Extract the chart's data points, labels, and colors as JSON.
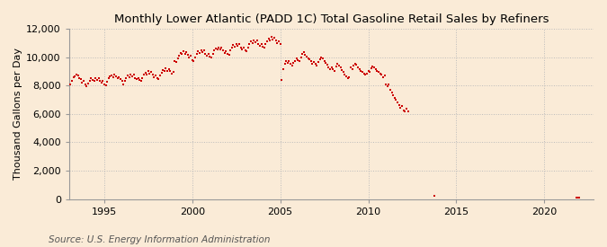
{
  "title": "Monthly Lower Atlantic (PADD 1C) Total Gasoline Retail Sales by Refiners",
  "ylabel": "Thousand Gallons per Day",
  "source": "Source: U.S. Energy Information Administration",
  "background_color": "#faebd7",
  "plot_bg_color": "#faebd7",
  "dot_color": "#cc0000",
  "grid_color": "#bbbbbb",
  "spine_color": "#999999",
  "ylim": [
    0,
    12000
  ],
  "yticks": [
    0,
    2000,
    4000,
    6000,
    8000,
    10000,
    12000
  ],
  "xlim": [
    1993.0,
    2022.8
  ],
  "xticks": [
    1995,
    2000,
    2005,
    2010,
    2015,
    2020
  ],
  "title_fontsize": 9.5,
  "tick_fontsize": 8,
  "ylabel_fontsize": 8,
  "source_fontsize": 7.5,
  "data": [
    [
      1993.08,
      8050
    ],
    [
      1993.17,
      8350
    ],
    [
      1993.25,
      8600
    ],
    [
      1993.33,
      8650
    ],
    [
      1993.42,
      8750
    ],
    [
      1993.5,
      8700
    ],
    [
      1993.58,
      8550
    ],
    [
      1993.67,
      8450
    ],
    [
      1993.75,
      8200
    ],
    [
      1993.83,
      8300
    ],
    [
      1993.92,
      8100
    ],
    [
      1994.0,
      7950
    ],
    [
      1994.08,
      8150
    ],
    [
      1994.17,
      8350
    ],
    [
      1994.25,
      8500
    ],
    [
      1994.33,
      8400
    ],
    [
      1994.42,
      8300
    ],
    [
      1994.5,
      8550
    ],
    [
      1994.58,
      8400
    ],
    [
      1994.67,
      8500
    ],
    [
      1994.75,
      8350
    ],
    [
      1994.83,
      8200
    ],
    [
      1994.92,
      8300
    ],
    [
      1995.0,
      8100
    ],
    [
      1995.08,
      8000
    ],
    [
      1995.17,
      8250
    ],
    [
      1995.25,
      8500
    ],
    [
      1995.33,
      8650
    ],
    [
      1995.42,
      8700
    ],
    [
      1995.5,
      8600
    ],
    [
      1995.58,
      8750
    ],
    [
      1995.67,
      8650
    ],
    [
      1995.75,
      8500
    ],
    [
      1995.83,
      8600
    ],
    [
      1995.92,
      8450
    ],
    [
      1996.0,
      8300
    ],
    [
      1996.08,
      8100
    ],
    [
      1996.17,
      8350
    ],
    [
      1996.25,
      8550
    ],
    [
      1996.33,
      8700
    ],
    [
      1996.42,
      8600
    ],
    [
      1996.5,
      8800
    ],
    [
      1996.58,
      8650
    ],
    [
      1996.67,
      8750
    ],
    [
      1996.75,
      8550
    ],
    [
      1996.83,
      8450
    ],
    [
      1996.92,
      8550
    ],
    [
      1997.0,
      8400
    ],
    [
      1997.08,
      8300
    ],
    [
      1997.17,
      8550
    ],
    [
      1997.25,
      8750
    ],
    [
      1997.33,
      8900
    ],
    [
      1997.42,
      8800
    ],
    [
      1997.5,
      9000
    ],
    [
      1997.58,
      8850
    ],
    [
      1997.67,
      8950
    ],
    [
      1997.75,
      8800
    ],
    [
      1997.83,
      8600
    ],
    [
      1997.92,
      8700
    ],
    [
      1998.0,
      8550
    ],
    [
      1998.08,
      8450
    ],
    [
      1998.17,
      8700
    ],
    [
      1998.25,
      8900
    ],
    [
      1998.33,
      9100
    ],
    [
      1998.42,
      9000
    ],
    [
      1998.5,
      9200
    ],
    [
      1998.58,
      9050
    ],
    [
      1998.67,
      9150
    ],
    [
      1998.75,
      9000
    ],
    [
      1998.83,
      8850
    ],
    [
      1998.92,
      8950
    ],
    [
      1999.0,
      9750
    ],
    [
      1999.08,
      9650
    ],
    [
      1999.17,
      9900
    ],
    [
      1999.25,
      10100
    ],
    [
      1999.33,
      10300
    ],
    [
      1999.42,
      10200
    ],
    [
      1999.5,
      10400
    ],
    [
      1999.58,
      10250
    ],
    [
      1999.67,
      10350
    ],
    [
      1999.75,
      10150
    ],
    [
      1999.83,
      10000
    ],
    [
      1999.92,
      10100
    ],
    [
      2000.0,
      9800
    ],
    [
      2000.08,
      9700
    ],
    [
      2000.17,
      10000
    ],
    [
      2000.25,
      10200
    ],
    [
      2000.33,
      10400
    ],
    [
      2000.42,
      10300
    ],
    [
      2000.5,
      10500
    ],
    [
      2000.58,
      10350
    ],
    [
      2000.67,
      10450
    ],
    [
      2000.75,
      10250
    ],
    [
      2000.83,
      10100
    ],
    [
      2000.92,
      10200
    ],
    [
      2001.0,
      10050
    ],
    [
      2001.08,
      9950
    ],
    [
      2001.17,
      10250
    ],
    [
      2001.25,
      10450
    ],
    [
      2001.33,
      10600
    ],
    [
      2001.42,
      10550
    ],
    [
      2001.5,
      10700
    ],
    [
      2001.58,
      10550
    ],
    [
      2001.67,
      10650
    ],
    [
      2001.75,
      10450
    ],
    [
      2001.83,
      10300
    ],
    [
      2001.92,
      10400
    ],
    [
      2002.0,
      10250
    ],
    [
      2002.08,
      10150
    ],
    [
      2002.17,
      10450
    ],
    [
      2002.25,
      10650
    ],
    [
      2002.33,
      10850
    ],
    [
      2002.42,
      10750
    ],
    [
      2002.5,
      10950
    ],
    [
      2002.58,
      10800
    ],
    [
      2002.67,
      10900
    ],
    [
      2002.75,
      10700
    ],
    [
      2002.83,
      10550
    ],
    [
      2002.92,
      10650
    ],
    [
      2003.0,
      10500
    ],
    [
      2003.08,
      10400
    ],
    [
      2003.17,
      10700
    ],
    [
      2003.25,
      10900
    ],
    [
      2003.33,
      11100
    ],
    [
      2003.42,
      11000
    ],
    [
      2003.5,
      11200
    ],
    [
      2003.58,
      11050
    ],
    [
      2003.67,
      11150
    ],
    [
      2003.75,
      10950
    ],
    [
      2003.83,
      10800
    ],
    [
      2003.92,
      10900
    ],
    [
      2004.0,
      10750
    ],
    [
      2004.08,
      10650
    ],
    [
      2004.17,
      10950
    ],
    [
      2004.25,
      11100
    ],
    [
      2004.33,
      11300
    ],
    [
      2004.42,
      11200
    ],
    [
      2004.5,
      11400
    ],
    [
      2004.58,
      11250
    ],
    [
      2004.67,
      11350
    ],
    [
      2004.75,
      11150
    ],
    [
      2004.83,
      11000
    ],
    [
      2004.92,
      11100
    ],
    [
      2005.0,
      10900
    ],
    [
      2005.08,
      8400
    ],
    [
      2005.17,
      9150
    ],
    [
      2005.25,
      9500
    ],
    [
      2005.33,
      9700
    ],
    [
      2005.42,
      9600
    ],
    [
      2005.5,
      9750
    ],
    [
      2005.58,
      9500
    ],
    [
      2005.67,
      9400
    ],
    [
      2005.75,
      9600
    ],
    [
      2005.83,
      9750
    ],
    [
      2005.92,
      9900
    ],
    [
      2006.0,
      9800
    ],
    [
      2006.08,
      9700
    ],
    [
      2006.17,
      10000
    ],
    [
      2006.25,
      10200
    ],
    [
      2006.33,
      10350
    ],
    [
      2006.42,
      10150
    ],
    [
      2006.5,
      10050
    ],
    [
      2006.58,
      9900
    ],
    [
      2006.67,
      9850
    ],
    [
      2006.75,
      9700
    ],
    [
      2006.83,
      9550
    ],
    [
      2006.92,
      9650
    ],
    [
      2007.0,
      9500
    ],
    [
      2007.08,
      9400
    ],
    [
      2007.17,
      9650
    ],
    [
      2007.25,
      9850
    ],
    [
      2007.33,
      10000
    ],
    [
      2007.42,
      9900
    ],
    [
      2007.5,
      9750
    ],
    [
      2007.58,
      9600
    ],
    [
      2007.67,
      9450
    ],
    [
      2007.75,
      9300
    ],
    [
      2007.83,
      9150
    ],
    [
      2007.92,
      9300
    ],
    [
      2008.0,
      9150
    ],
    [
      2008.08,
      9050
    ],
    [
      2008.17,
      9350
    ],
    [
      2008.25,
      9500
    ],
    [
      2008.33,
      9400
    ],
    [
      2008.42,
      9250
    ],
    [
      2008.5,
      9100
    ],
    [
      2008.58,
      8950
    ],
    [
      2008.67,
      8800
    ],
    [
      2008.75,
      8650
    ],
    [
      2008.83,
      8500
    ],
    [
      2008.92,
      8600
    ],
    [
      2009.0,
      9250
    ],
    [
      2009.08,
      9150
    ],
    [
      2009.17,
      9400
    ],
    [
      2009.25,
      9550
    ],
    [
      2009.33,
      9450
    ],
    [
      2009.42,
      9300
    ],
    [
      2009.5,
      9150
    ],
    [
      2009.58,
      9050
    ],
    [
      2009.67,
      8950
    ],
    [
      2009.75,
      8850
    ],
    [
      2009.83,
      8750
    ],
    [
      2009.92,
      8850
    ],
    [
      2010.0,
      9050
    ],
    [
      2010.08,
      8950
    ],
    [
      2010.17,
      9200
    ],
    [
      2010.25,
      9350
    ],
    [
      2010.33,
      9250
    ],
    [
      2010.42,
      9150
    ],
    [
      2010.5,
      9050
    ],
    [
      2010.58,
      8950
    ],
    [
      2010.67,
      8850
    ],
    [
      2010.75,
      8750
    ],
    [
      2010.83,
      8600
    ],
    [
      2010.92,
      8700
    ],
    [
      2011.0,
      8050
    ],
    [
      2011.08,
      7950
    ],
    [
      2011.17,
      8100
    ],
    [
      2011.25,
      7700
    ],
    [
      2011.33,
      7500
    ],
    [
      2011.42,
      7300
    ],
    [
      2011.5,
      7100
    ],
    [
      2011.58,
      7000
    ],
    [
      2011.67,
      6800
    ],
    [
      2011.75,
      6600
    ],
    [
      2011.83,
      6450
    ],
    [
      2011.92,
      6550
    ],
    [
      2012.0,
      6250
    ],
    [
      2012.08,
      6150
    ],
    [
      2012.17,
      6350
    ],
    [
      2012.25,
      6200
    ],
    [
      2013.75,
      250
    ],
    [
      2021.83,
      80
    ],
    [
      2021.92,
      100
    ],
    [
      2022.0,
      90
    ]
  ]
}
